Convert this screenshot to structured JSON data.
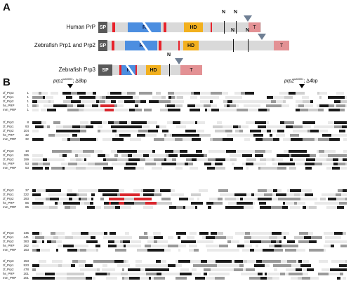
{
  "panel_a": {
    "letter": "A",
    "proteins": [
      {
        "label": "Human PrP",
        "sp": "SP",
        "r": "R",
        "hd": "HD",
        "t": "T",
        "n1": "N",
        "n2": "N"
      },
      {
        "label": "Zebrafish Prp1 and Prp2",
        "sp": "SP",
        "r": "R",
        "hd": "HD",
        "t": "T",
        "n1": "N",
        "n2": "N"
      },
      {
        "label": "Zebrafish Prp3",
        "sp": "SP",
        "r": "R",
        "hd": "HD",
        "t": "T",
        "n1": "N"
      }
    ]
  },
  "panel_b": {
    "letter": "B",
    "mutation_left_gene": "prp1",
    "mutation_left_allele": "ua5003",
    "mutation_left_text": "; Δ8bp",
    "mutation_right_gene": "prp2",
    "mutation_right_allele": "ua5001",
    "mutation_right_text": "; Δ4bp",
    "blocks": [
      {
        "rows": [
          {
            "name": "zf_Prp3",
            "num": "1"
          },
          {
            "name": "zf_Prp1",
            "num": "1"
          },
          {
            "name": "zf_Prp2",
            "num": "1"
          },
          {
            "name": "hs_PRP",
            "num": "1"
          },
          {
            "name": "mm_PRP",
            "num": "1"
          }
        ]
      },
      {
        "rows": [
          {
            "name": "zf_Prp3",
            "num": "8"
          },
          {
            "name": "zf_Prp1",
            "num": "93"
          },
          {
            "name": "zf_Prp2",
            "num": "104"
          },
          {
            "name": "hs_PRP",
            "num": "32"
          },
          {
            "name": "mm_PRP",
            "num": "32"
          }
        ]
      },
      {
        "rows": [
          {
            "name": "zf_Prp3",
            "num": "10"
          },
          {
            "name": "zf_Prp1",
            "num": "185"
          },
          {
            "name": "zf_Prp2",
            "num": "199"
          },
          {
            "name": "hs_PRP",
            "num": "53"
          },
          {
            "name": "mm_PRP",
            "num": "53"
          }
        ]
      },
      {
        "rows": [
          {
            "name": "zf_Prp3",
            "num": "37"
          },
          {
            "name": "zf_Prp1",
            "num": "322"
          },
          {
            "name": "zf_Prp2",
            "num": "293"
          },
          {
            "name": "hs_PRP",
            "num": "86"
          },
          {
            "name": "mm_PRP",
            "num": "85"
          }
        ]
      },
      {
        "rows": [
          {
            "name": "zf_Prp3",
            "num": "135"
          },
          {
            "name": "zf_Prp1",
            "num": "441"
          },
          {
            "name": "zf_Prp2",
            "num": "383"
          },
          {
            "name": "hs_PRP",
            "num": "162"
          },
          {
            "name": "mm_PRP",
            "num": "163"
          }
        ]
      },
      {
        "rows": [
          {
            "name": "zf_Prp3",
            "num": "153"
          },
          {
            "name": "zf_Prp1",
            "num": "523"
          },
          {
            "name": "zf_Prp2",
            "num": "478"
          },
          {
            "name": "hs_PRP",
            "num": "201"
          },
          {
            "name": "mm_PRP",
            "num": "201"
          }
        ]
      }
    ]
  }
}
